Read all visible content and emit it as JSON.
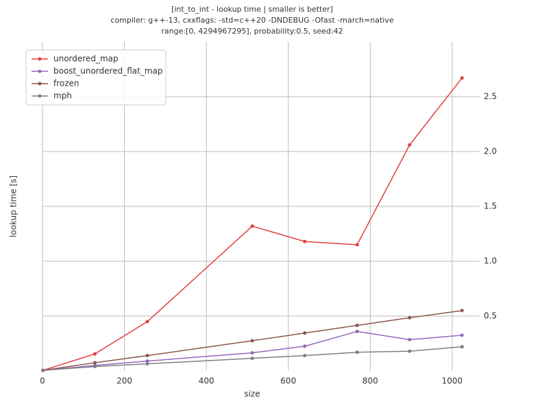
{
  "chart_data": {
    "type": "line",
    "title": [
      "[int_to_int - lookup time | smaller is better]",
      "compiler: g++-13, cxxflags: -std=c++20 -DNDEBUG -Ofast -march=native",
      "range:[0, 4294967295], probability:0.5, seed:42"
    ],
    "x_label": "size",
    "y_label": "lookup time [s]",
    "x": [
      1,
      128,
      256,
      512,
      640,
      768,
      896,
      1024
    ],
    "series": [
      {
        "name": "unordered_map",
        "color": "#e0403f",
        "values": [
          0.005,
          0.155,
          0.45,
          1.32,
          1.18,
          1.15,
          2.06,
          2.67
        ]
      },
      {
        "name": "boost_unordered_flat_map",
        "color": "#9467bd",
        "values": [
          0.005,
          0.05,
          0.09,
          0.165,
          0.225,
          0.36,
          0.285,
          0.325
        ]
      },
      {
        "name": "frozen",
        "color": "#8c564b",
        "values": [
          0.005,
          0.075,
          0.14,
          0.275,
          0.345,
          0.415,
          0.485,
          0.55
        ]
      },
      {
        "name": "mph",
        "color": "#7f7f7f",
        "values": [
          0.005,
          0.04,
          0.065,
          0.115,
          0.14,
          0.17,
          0.18,
          0.22
        ]
      }
    ],
    "xlim": [
      0,
      1067
    ],
    "ylim": [
      0,
      3.0
    ],
    "xticks": [
      0,
      200,
      400,
      600,
      800,
      1000
    ],
    "yticks": [
      0.5,
      {
        "value": 1.0,
        "label": "1.0"
      },
      1.5,
      {
        "value": 2.0,
        "label": "2.0"
      },
      2.5
    ],
    "grid": true,
    "legend": "upper-left"
  }
}
